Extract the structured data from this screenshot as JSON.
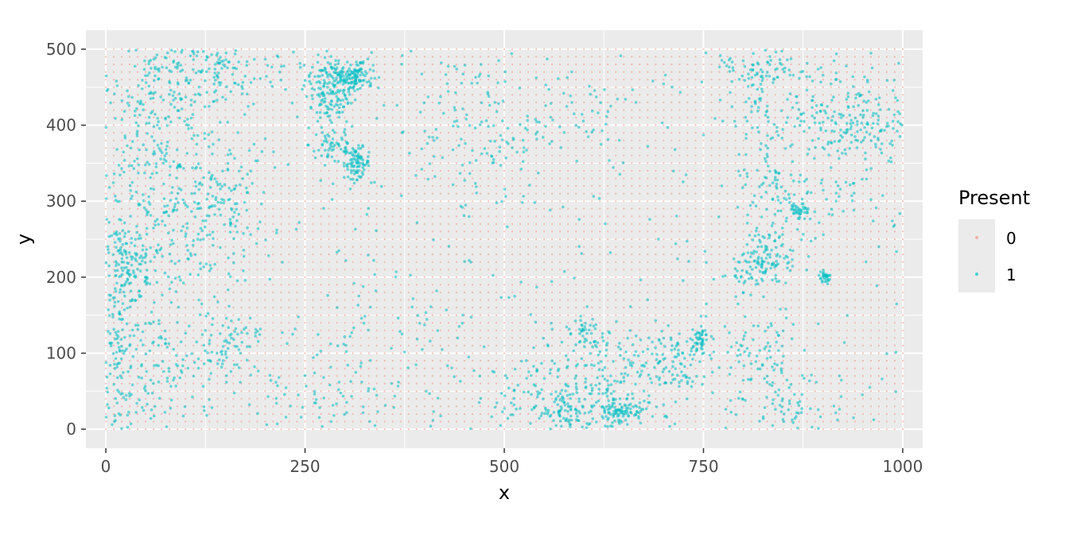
{
  "chart_data": {
    "type": "scatter",
    "title": "",
    "xlabel": "x",
    "ylabel": "y",
    "xlim": [
      -25,
      1025
    ],
    "ylim": [
      -25,
      525
    ],
    "x_ticks": [
      0,
      250,
      500,
      750,
      1000
    ],
    "x_tick_labels": [
      "0",
      "250",
      "500",
      "750",
      "1000"
    ],
    "y_ticks": [
      0,
      100,
      200,
      300,
      400,
      500
    ],
    "y_tick_labels": [
      "0",
      "100",
      "200",
      "300",
      "400",
      "500"
    ],
    "grid": true,
    "legend": {
      "title": "Present",
      "position": "right",
      "entries": [
        {
          "label": "0",
          "color": "#F8766D"
        },
        {
          "label": "1",
          "color": "#00BFC4"
        }
      ]
    },
    "background_grid": {
      "label": "0",
      "x_start": 0,
      "x_end": 1000,
      "x_step": 10,
      "y_start": 0,
      "y_end": 500,
      "y_step": 10
    },
    "series": [
      {
        "name": "1",
        "color": "#00BFC4",
        "clusters": [
          {
            "cx": 290,
            "cy": 460,
            "sx": 20,
            "sy": 15,
            "n": 180
          },
          {
            "cx": 315,
            "cy": 465,
            "sx": 10,
            "sy": 8,
            "n": 60
          },
          {
            "cx": 315,
            "cy": 350,
            "sx": 8,
            "sy": 10,
            "n": 90
          },
          {
            "cx": 285,
            "cy": 375,
            "sx": 15,
            "sy": 15,
            "n": 60
          },
          {
            "cx": 280,
            "cy": 420,
            "sx": 15,
            "sy": 10,
            "n": 50
          },
          {
            "cx": 90,
            "cy": 470,
            "sx": 40,
            "sy": 25,
            "n": 120
          },
          {
            "cx": 150,
            "cy": 470,
            "sx": 40,
            "sy": 25,
            "n": 80
          },
          {
            "cx": 60,
            "cy": 400,
            "sx": 35,
            "sy": 40,
            "n": 100
          },
          {
            "cx": 70,
            "cy": 300,
            "sx": 45,
            "sy": 45,
            "n": 160
          },
          {
            "cx": 150,
            "cy": 300,
            "sx": 30,
            "sy": 40,
            "n": 110
          },
          {
            "cx": 25,
            "cy": 220,
            "sx": 15,
            "sy": 25,
            "n": 100
          },
          {
            "cx": 60,
            "cy": 210,
            "sx": 35,
            "sy": 30,
            "n": 70
          },
          {
            "cx": 20,
            "cy": 120,
            "sx": 15,
            "sy": 50,
            "n": 90
          },
          {
            "cx": 80,
            "cy": 80,
            "sx": 45,
            "sy": 45,
            "n": 90
          },
          {
            "cx": 150,
            "cy": 115,
            "sx": 20,
            "sy": 20,
            "n": 70
          },
          {
            "cx": 20,
            "cy": 40,
            "sx": 25,
            "sy": 30,
            "n": 50
          },
          {
            "cx": 240,
            "cy": 30,
            "sx": 60,
            "sy": 25,
            "n": 50
          },
          {
            "cx": 330,
            "cy": 100,
            "sx": 60,
            "sy": 60,
            "n": 60
          },
          {
            "cx": 470,
            "cy": 400,
            "sx": 40,
            "sy": 50,
            "n": 110
          },
          {
            "cx": 580,
            "cy": 420,
            "sx": 50,
            "sy": 40,
            "n": 50
          },
          {
            "cx": 580,
            "cy": 20,
            "sx": 20,
            "sy": 15,
            "n": 80
          },
          {
            "cx": 645,
            "cy": 25,
            "sx": 15,
            "sy": 10,
            "n": 100
          },
          {
            "cx": 550,
            "cy": 45,
            "sx": 50,
            "sy": 25,
            "n": 90
          },
          {
            "cx": 620,
            "cy": 80,
            "sx": 40,
            "sy": 30,
            "n": 130
          },
          {
            "cx": 710,
            "cy": 90,
            "sx": 30,
            "sy": 25,
            "n": 100
          },
          {
            "cx": 745,
            "cy": 120,
            "sx": 5,
            "sy": 8,
            "n": 40
          },
          {
            "cx": 600,
            "cy": 125,
            "sx": 10,
            "sy": 10,
            "n": 30
          },
          {
            "cx": 820,
            "cy": 480,
            "sx": 25,
            "sy": 20,
            "n": 70
          },
          {
            "cx": 840,
            "cy": 420,
            "sx": 30,
            "sy": 30,
            "n": 70
          },
          {
            "cx": 930,
            "cy": 420,
            "sx": 30,
            "sy": 30,
            "n": 110
          },
          {
            "cx": 960,
            "cy": 390,
            "sx": 25,
            "sy": 25,
            "n": 60
          },
          {
            "cx": 840,
            "cy": 320,
            "sx": 25,
            "sy": 30,
            "n": 70
          },
          {
            "cx": 870,
            "cy": 285,
            "sx": 6,
            "sy": 6,
            "n": 35
          },
          {
            "cx": 820,
            "cy": 215,
            "sx": 15,
            "sy": 15,
            "n": 90
          },
          {
            "cx": 850,
            "cy": 240,
            "sx": 20,
            "sy": 25,
            "n": 40
          },
          {
            "cx": 902,
            "cy": 199,
            "sx": 4,
            "sy": 4,
            "n": 30
          },
          {
            "cx": 820,
            "cy": 90,
            "sx": 25,
            "sy": 35,
            "n": 80
          },
          {
            "cx": 860,
            "cy": 30,
            "sx": 30,
            "sy": 25,
            "n": 50
          },
          {
            "cx": 910,
            "cy": 320,
            "sx": 25,
            "sy": 30,
            "n": 40
          }
        ],
        "scatter_noise_points": 400
      }
    ]
  }
}
